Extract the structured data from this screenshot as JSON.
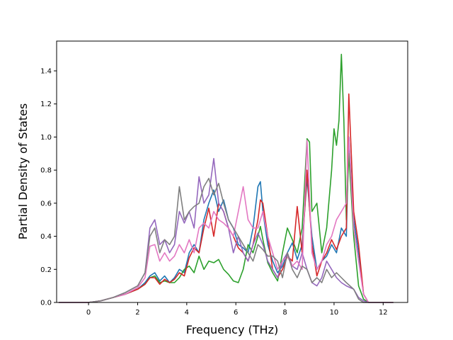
{
  "chart_data": {
    "type": "line",
    "xlabel": "Frequency (THz)",
    "ylabel": "Partial Density of States",
    "xlim": [
      -1.3,
      13.0
    ],
    "ylim": [
      0.0,
      1.58
    ],
    "xticks": [
      0,
      2,
      4,
      6,
      8,
      10,
      12
    ],
    "yticks": [
      0.0,
      0.2,
      0.4,
      0.6,
      0.8,
      1.0,
      1.2,
      1.4
    ],
    "xtick_labels": [
      "0",
      "2",
      "4",
      "6",
      "8",
      "10",
      "12"
    ],
    "ytick_labels": [
      "0.0",
      "0.2",
      "0.4",
      "0.6",
      "0.8",
      "1.0",
      "1.2",
      "1.4"
    ],
    "grid": false,
    "legend": "none",
    "series": [
      {
        "color": "#1f77b4",
        "x": [
          -1.2,
          0,
          0.5,
          1,
          1.5,
          2,
          2.3,
          2.5,
          2.7,
          2.9,
          3.1,
          3.3,
          3.5,
          3.7,
          3.9,
          4.1,
          4.3,
          4.5,
          4.7,
          4.9,
          5.1,
          5.3,
          5.5,
          5.7,
          5.9,
          6.1,
          6.3,
          6.5,
          6.7,
          6.9,
          7.0,
          7.1,
          7.3,
          7.5,
          7.7,
          7.9,
          8.1,
          8.3,
          8.5,
          8.7,
          8.9,
          9.1,
          9.3,
          9.5,
          9.7,
          9.9,
          10.1,
          10.3,
          10.5,
          10.6,
          10.8,
          11.0,
          11.2,
          11.4,
          12.4
        ],
        "y": [
          0,
          0,
          0.01,
          0.03,
          0.05,
          0.08,
          0.12,
          0.16,
          0.18,
          0.13,
          0.16,
          0.12,
          0.15,
          0.2,
          0.18,
          0.3,
          0.35,
          0.3,
          0.5,
          0.6,
          0.68,
          0.55,
          0.62,
          0.5,
          0.45,
          0.35,
          0.33,
          0.3,
          0.45,
          0.7,
          0.73,
          0.55,
          0.35,
          0.25,
          0.18,
          0.22,
          0.3,
          0.36,
          0.26,
          0.35,
          0.75,
          0.4,
          0.2,
          0.25,
          0.28,
          0.35,
          0.3,
          0.45,
          0.4,
          1.0,
          0.5,
          0.3,
          0.05,
          0,
          0
        ]
      },
      {
        "color": "#2ca02c",
        "x": [
          -1.2,
          0,
          0.5,
          1,
          1.5,
          2,
          2.3,
          2.5,
          2.7,
          2.9,
          3.1,
          3.3,
          3.5,
          3.7,
          3.9,
          4.1,
          4.3,
          4.5,
          4.7,
          4.9,
          5.1,
          5.3,
          5.5,
          5.7,
          5.9,
          6.1,
          6.3,
          6.5,
          6.7,
          6.9,
          7.0,
          7.1,
          7.3,
          7.5,
          7.7,
          7.9,
          8.1,
          8.3,
          8.5,
          8.7,
          8.9,
          9.0,
          9.1,
          9.3,
          9.5,
          9.7,
          9.9,
          10.0,
          10.1,
          10.2,
          10.3,
          10.4,
          10.5,
          10.6,
          10.8,
          11.0,
          11.2,
          11.4,
          12.4
        ],
        "y": [
          0,
          0,
          0.01,
          0.03,
          0.05,
          0.08,
          0.11,
          0.15,
          0.16,
          0.12,
          0.13,
          0.12,
          0.12,
          0.15,
          0.2,
          0.22,
          0.18,
          0.28,
          0.2,
          0.25,
          0.24,
          0.26,
          0.2,
          0.17,
          0.13,
          0.12,
          0.2,
          0.35,
          0.3,
          0.4,
          0.46,
          0.38,
          0.24,
          0.18,
          0.13,
          0.3,
          0.45,
          0.38,
          0.3,
          0.45,
          0.99,
          0.97,
          0.55,
          0.6,
          0.3,
          0.45,
          0.8,
          1.05,
          0.95,
          1.1,
          1.5,
          1.1,
          0.5,
          0.9,
          0.4,
          0.1,
          0.02,
          0,
          0
        ]
      },
      {
        "color": "#d62728",
        "x": [
          -1.2,
          0,
          0.5,
          1,
          1.5,
          2,
          2.3,
          2.5,
          2.7,
          2.9,
          3.1,
          3.3,
          3.5,
          3.7,
          3.9,
          4.1,
          4.3,
          4.5,
          4.7,
          4.9,
          5.1,
          5.3,
          5.5,
          5.7,
          5.9,
          6.1,
          6.3,
          6.5,
          6.7,
          6.9,
          7.0,
          7.1,
          7.3,
          7.5,
          7.7,
          7.9,
          8.1,
          8.3,
          8.5,
          8.7,
          8.9,
          9.1,
          9.3,
          9.5,
          9.7,
          9.9,
          10.1,
          10.3,
          10.5,
          10.6,
          10.8,
          11.0,
          11.2,
          11.4,
          12.4
        ],
        "y": [
          0,
          0,
          0.01,
          0.03,
          0.05,
          0.08,
          0.11,
          0.15,
          0.15,
          0.11,
          0.14,
          0.12,
          0.14,
          0.18,
          0.16,
          0.27,
          0.33,
          0.3,
          0.45,
          0.57,
          0.4,
          0.6,
          0.55,
          0.45,
          0.4,
          0.33,
          0.3,
          0.25,
          0.35,
          0.5,
          0.62,
          0.6,
          0.4,
          0.2,
          0.15,
          0.2,
          0.28,
          0.25,
          0.58,
          0.3,
          0.8,
          0.35,
          0.16,
          0.25,
          0.3,
          0.38,
          0.32,
          0.4,
          0.45,
          1.26,
          0.55,
          0.35,
          0.05,
          0,
          0
        ]
      },
      {
        "color": "#9467bd",
        "x": [
          -1.2,
          0,
          0.5,
          1,
          1.5,
          2,
          2.3,
          2.5,
          2.7,
          2.9,
          3.1,
          3.3,
          3.5,
          3.7,
          3.9,
          4.1,
          4.3,
          4.5,
          4.7,
          4.9,
          5.1,
          5.3,
          5.5,
          5.7,
          5.9,
          6.1,
          6.3,
          6.5,
          6.7,
          6.9,
          7.1,
          7.3,
          7.5,
          7.7,
          7.9,
          8.1,
          8.3,
          8.5,
          8.7,
          8.9,
          9.1,
          9.3,
          9.5,
          9.7,
          9.9,
          10.1,
          10.3,
          10.5,
          10.8,
          11.0,
          11.2,
          11.4,
          12.4
        ],
        "y": [
          0,
          0,
          0.01,
          0.03,
          0.06,
          0.1,
          0.18,
          0.45,
          0.5,
          0.35,
          0.38,
          0.3,
          0.35,
          0.55,
          0.48,
          0.55,
          0.45,
          0.76,
          0.6,
          0.65,
          0.87,
          0.6,
          0.55,
          0.45,
          0.3,
          0.4,
          0.3,
          0.25,
          0.35,
          0.42,
          0.35,
          0.25,
          0.2,
          0.15,
          0.25,
          0.3,
          0.22,
          0.2,
          0.3,
          0.2,
          0.12,
          0.1,
          0.15,
          0.25,
          0.2,
          0.15,
          0.12,
          0.1,
          0.08,
          0.03,
          0.01,
          0,
          0
        ]
      },
      {
        "color": "#e377c2",
        "x": [
          -1.2,
          0,
          0.5,
          1,
          1.5,
          2,
          2.3,
          2.5,
          2.7,
          2.9,
          3.1,
          3.3,
          3.5,
          3.7,
          3.9,
          4.1,
          4.3,
          4.5,
          4.7,
          4.9,
          5.1,
          5.3,
          5.5,
          5.7,
          5.9,
          6.1,
          6.3,
          6.5,
          6.7,
          6.9,
          7.1,
          7.3,
          7.5,
          7.7,
          7.9,
          8.1,
          8.3,
          8.5,
          8.7,
          8.9,
          9.1,
          9.3,
          9.5,
          9.7,
          9.9,
          10.1,
          10.3,
          10.5,
          10.6,
          10.8,
          11.0,
          11.2,
          11.4,
          12.4
        ],
        "y": [
          0,
          0,
          0.01,
          0.03,
          0.05,
          0.09,
          0.15,
          0.34,
          0.35,
          0.25,
          0.3,
          0.25,
          0.28,
          0.35,
          0.3,
          0.38,
          0.3,
          0.45,
          0.48,
          0.45,
          0.55,
          0.5,
          0.48,
          0.45,
          0.4,
          0.55,
          0.7,
          0.5,
          0.45,
          0.45,
          0.55,
          0.4,
          0.3,
          0.2,
          0.25,
          0.28,
          0.22,
          0.25,
          0.2,
          0.98,
          0.3,
          0.2,
          0.25,
          0.35,
          0.4,
          0.5,
          0.55,
          0.6,
          1.0,
          0.45,
          0.25,
          0.05,
          0,
          0
        ]
      },
      {
        "color": "#7f7f7f",
        "x": [
          -1.2,
          0,
          0.5,
          1,
          1.5,
          2,
          2.3,
          2.5,
          2.7,
          2.9,
          3.1,
          3.3,
          3.5,
          3.7,
          3.9,
          4.1,
          4.3,
          4.5,
          4.7,
          4.9,
          5.1,
          5.3,
          5.5,
          5.7,
          5.9,
          6.1,
          6.3,
          6.5,
          6.7,
          6.9,
          7.1,
          7.3,
          7.5,
          7.7,
          7.9,
          8.1,
          8.3,
          8.5,
          8.7,
          8.9,
          9.1,
          9.3,
          9.5,
          9.7,
          9.9,
          10.1,
          10.3,
          10.5,
          10.8,
          11.0,
          11.2,
          11.4,
          12.4
        ],
        "y": [
          0,
          0,
          0.01,
          0.03,
          0.06,
          0.1,
          0.18,
          0.4,
          0.45,
          0.3,
          0.38,
          0.35,
          0.4,
          0.7,
          0.5,
          0.55,
          0.58,
          0.6,
          0.7,
          0.75,
          0.65,
          0.72,
          0.6,
          0.5,
          0.45,
          0.4,
          0.35,
          0.3,
          0.25,
          0.35,
          0.32,
          0.28,
          0.28,
          0.25,
          0.15,
          0.3,
          0.2,
          0.15,
          0.22,
          0.2,
          0.12,
          0.15,
          0.12,
          0.2,
          0.15,
          0.18,
          0.15,
          0.12,
          0.08,
          0.02,
          0,
          0,
          0
        ]
      }
    ]
  }
}
